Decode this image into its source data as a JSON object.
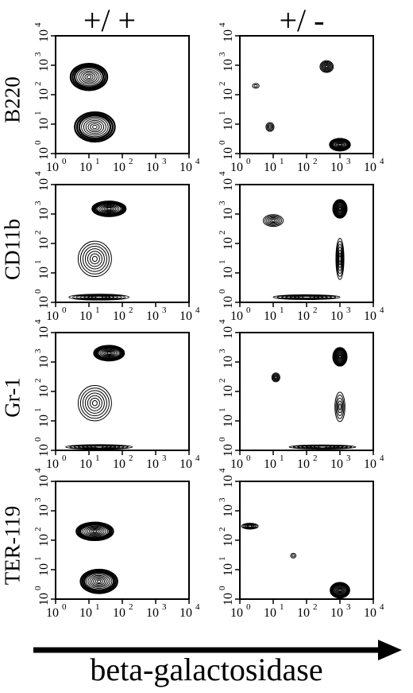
{
  "column_titles": [
    "+/ +",
    "+/ -"
  ],
  "row_labels": [
    "B220",
    "CD11b",
    "Gr-1",
    "TER-119"
  ],
  "x_axis_label": "beta-galactosidase",
  "chart_data": {
    "type": "contour",
    "scale": "log",
    "xlabel": "beta-galactosidase",
    "xlim": [
      1,
      10000
    ],
    "ylim": [
      1,
      10000
    ],
    "x_ticks": [
      "10",
      "10",
      "10",
      "10",
      "10"
    ],
    "x_tick_exponents": [
      "0",
      "1",
      "2",
      "3",
      "4"
    ],
    "y_ticks": [
      "10",
      "10",
      "10",
      "10",
      "10"
    ],
    "y_tick_exponents": [
      "0",
      "1",
      "2",
      "3",
      "4"
    ],
    "panels": [
      {
        "row": "B220",
        "genotype": "+/ +",
        "populations": [
          {
            "x": 10,
            "y": 400,
            "spread_x": 0.55,
            "spread_y": 0.45,
            "level": 9
          },
          {
            "x": 15,
            "y": 8,
            "spread_x": 0.6,
            "spread_y": 0.5,
            "level": 9
          }
        ]
      },
      {
        "row": "B220",
        "genotype": "+/ -",
        "populations": [
          {
            "x": 400,
            "y": 900,
            "spread_x": 0.2,
            "spread_y": 0.2,
            "level": 7
          },
          {
            "x": 1000,
            "y": 2,
            "spread_x": 0.3,
            "spread_y": 0.2,
            "level": 9
          },
          {
            "x": 8,
            "y": 8,
            "spread_x": 0.12,
            "spread_y": 0.15,
            "level": 4
          },
          {
            "x": 3,
            "y": 200,
            "spread_x": 0.1,
            "spread_y": 0.08,
            "level": 2
          }
        ]
      },
      {
        "row": "CD11b",
        "genotype": "+/ +",
        "populations": [
          {
            "x": 40,
            "y": 1500,
            "spread_x": 0.5,
            "spread_y": 0.25,
            "level": 10
          },
          {
            "x": 15,
            "y": 30,
            "spread_x": 0.5,
            "spread_y": 0.6,
            "level": 7
          },
          {
            "x": 20,
            "y": 1.5,
            "spread_x": 0.9,
            "spread_y": 0.1,
            "level": 8
          }
        ]
      },
      {
        "row": "CD11b",
        "genotype": "+/ -",
        "populations": [
          {
            "x": 1000,
            "y": 1500,
            "spread_x": 0.2,
            "spread_y": 0.3,
            "level": 10
          },
          {
            "x": 10,
            "y": 600,
            "spread_x": 0.3,
            "spread_y": 0.2,
            "level": 6
          },
          {
            "x": 1000,
            "y": 30,
            "spread_x": 0.12,
            "spread_y": 0.7,
            "level": 7
          },
          {
            "x": 100,
            "y": 1.5,
            "spread_x": 1.0,
            "spread_y": 0.08,
            "level": 8
          }
        ]
      },
      {
        "row": "Gr-1",
        "genotype": "+/ +",
        "populations": [
          {
            "x": 40,
            "y": 2000,
            "spread_x": 0.45,
            "spread_y": 0.25,
            "level": 10
          },
          {
            "x": 15,
            "y": 40,
            "spread_x": 0.5,
            "spread_y": 0.6,
            "level": 7
          },
          {
            "x": 20,
            "y": 1.3,
            "spread_x": 1.0,
            "spread_y": 0.08,
            "level": 8
          }
        ]
      },
      {
        "row": "Gr-1",
        "genotype": "+/ -",
        "populations": [
          {
            "x": 1000,
            "y": 1500,
            "spread_x": 0.2,
            "spread_y": 0.3,
            "level": 10
          },
          {
            "x": 12,
            "y": 300,
            "spread_x": 0.12,
            "spread_y": 0.15,
            "level": 5
          },
          {
            "x": 1000,
            "y": 30,
            "spread_x": 0.15,
            "spread_y": 0.5,
            "level": 5
          },
          {
            "x": 300,
            "y": 1.3,
            "spread_x": 1.0,
            "spread_y": 0.07,
            "level": 8
          }
        ]
      },
      {
        "row": "TER-119",
        "genotype": "+/ +",
        "populations": [
          {
            "x": 15,
            "y": 200,
            "spread_x": 0.55,
            "spread_y": 0.3,
            "level": 10
          },
          {
            "x": 20,
            "y": 4,
            "spread_x": 0.55,
            "spread_y": 0.4,
            "level": 10
          }
        ]
      },
      {
        "row": "TER-119",
        "genotype": "+/ -",
        "populations": [
          {
            "x": 2,
            "y": 300,
            "spread_x": 0.25,
            "spread_y": 0.1,
            "level": 6
          },
          {
            "x": 1000,
            "y": 2,
            "spread_x": 0.28,
            "spread_y": 0.25,
            "level": 10
          },
          {
            "x": 40,
            "y": 30,
            "spread_x": 0.08,
            "spread_y": 0.08,
            "level": 2
          }
        ]
      }
    ]
  }
}
